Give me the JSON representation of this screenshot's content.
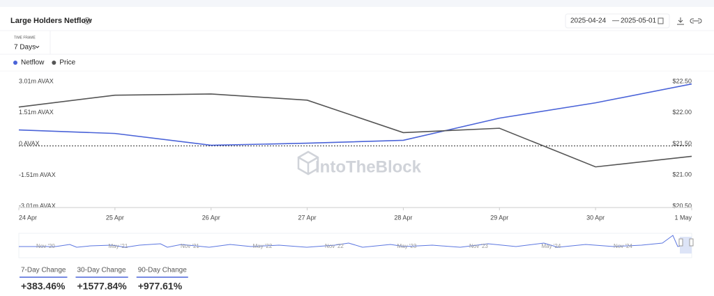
{
  "header": {
    "title": "Large Holders Netflow",
    "date_from": "2025-04-24",
    "date_separator": "—",
    "date_to": "2025-05-01"
  },
  "time_frame": {
    "label": "TIME FRAME",
    "value": "7 Days"
  },
  "watermark": "IntoTheBlock",
  "chart_data": {
    "type": "line",
    "categories": [
      "24 Apr",
      "25 Apr",
      "26 Apr",
      "27 Apr",
      "28 Apr",
      "29 Apr",
      "30 Apr",
      "1 May"
    ],
    "series": [
      {
        "name": "Netflow",
        "color": "#4a63d8",
        "values": [
          670000,
          500000,
          -70000,
          30000,
          170000,
          1240000,
          1980000,
          2890000
        ]
      },
      {
        "name": "Price",
        "color": "#555555",
        "axis": "y2",
        "values": [
          22.09,
          22.28,
          22.3,
          22.2,
          21.68,
          21.75,
          21.13,
          21.3
        ]
      }
    ],
    "ylim": [
      -3010000,
      3010000
    ],
    "yticks": [
      {
        "value": 3010000,
        "label": "3.01m AVAX"
      },
      {
        "value": 1510000,
        "label": "1.51m AVAX"
      },
      {
        "value": 0,
        "label": "0 AVAX"
      },
      {
        "value": -1510000,
        "label": "-1.51m AVAX"
      },
      {
        "value": -3010000,
        "label": "-3.01m AVAX"
      }
    ],
    "y2lim": [
      20.5,
      22.5
    ],
    "y2ticks": [
      {
        "value": 22.5,
        "label": "$22.50"
      },
      {
        "value": 22,
        "label": "$22.00"
      },
      {
        "value": 21.5,
        "label": "$21.50"
      },
      {
        "value": 21,
        "label": "$21.00"
      },
      {
        "value": 20.5,
        "label": "$20.50"
      }
    ],
    "grid": false,
    "legend": "top-left"
  },
  "navigator": {
    "labels": [
      "Nov '20",
      "May '21",
      "Nov '21",
      "May '22",
      "Nov '22",
      "May '23",
      "Nov '23",
      "May '24",
      "Nov '24"
    ]
  },
  "changes": [
    {
      "label": "7-Day Change",
      "value": "+383.46%"
    },
    {
      "label": "30-Day Change",
      "value": "+1577.84%"
    },
    {
      "label": "90-Day Change",
      "value": "+977.61%"
    }
  ]
}
